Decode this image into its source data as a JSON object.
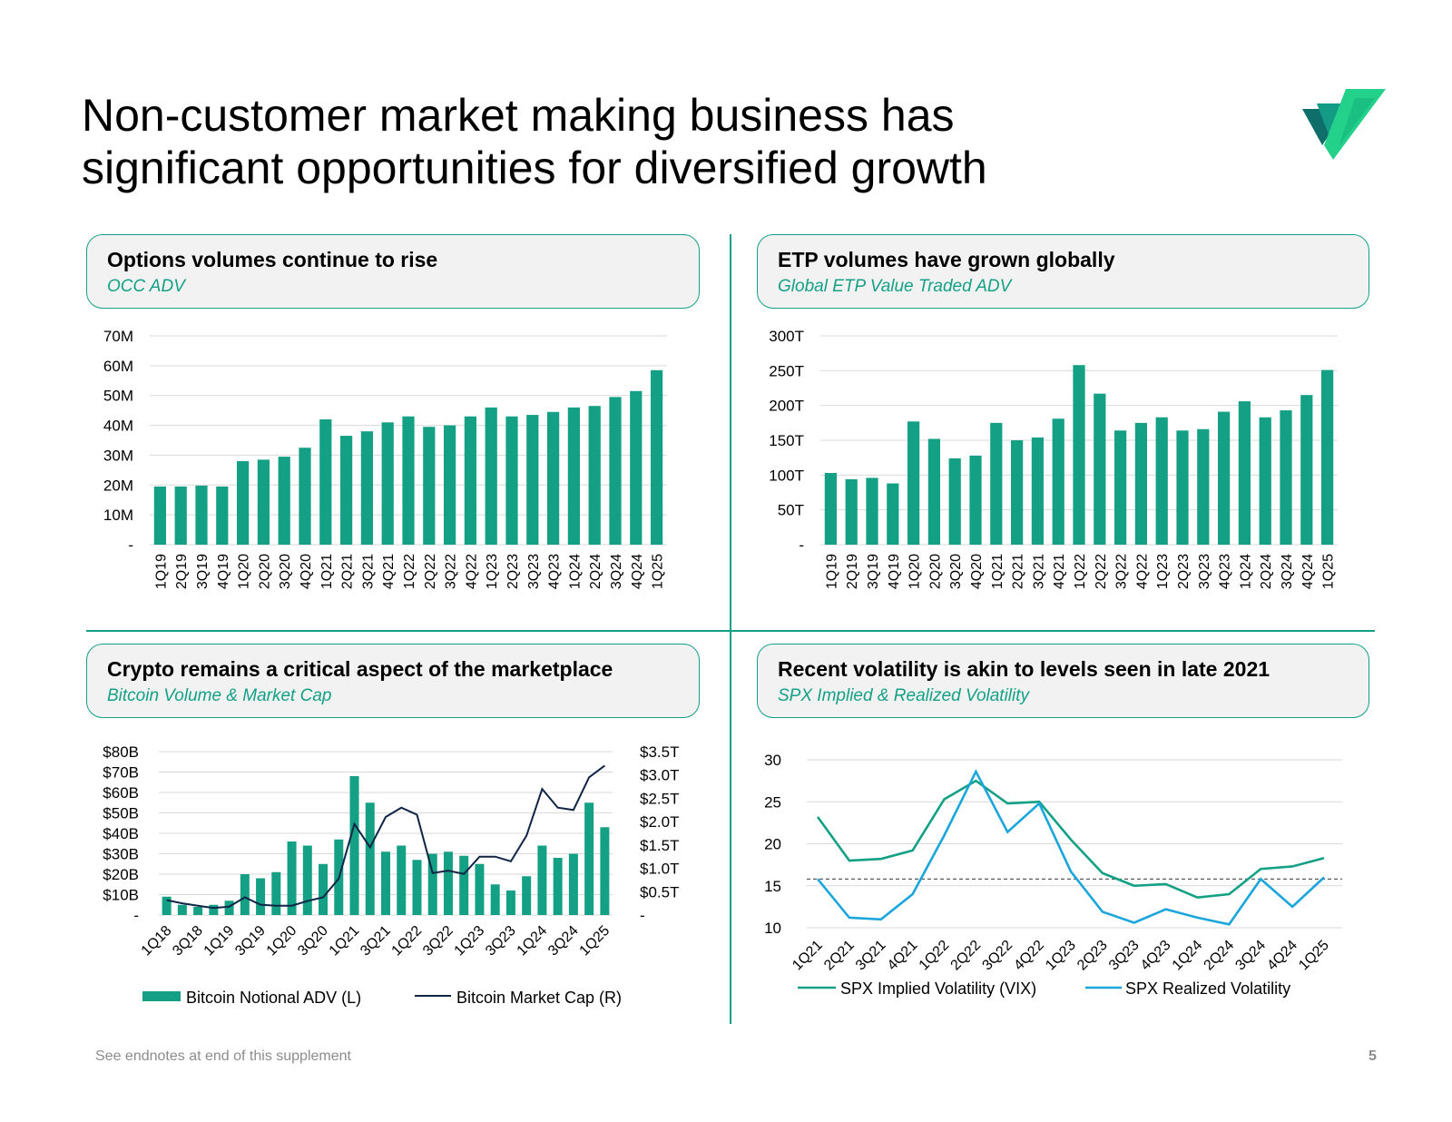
{
  "page": {
    "title_line1": "Non-customer market making business has",
    "title_line2": "significant opportunities for diversified growth",
    "footnote": "See endnotes at end of this supplement",
    "page_number": "5",
    "logo_icon": "check-logo-icon"
  },
  "colors": {
    "accent": "#14a085",
    "realized": "#1aa6dc",
    "mcap": "#0f2545",
    "grid": "#d9d9d9",
    "reference": "#595959"
  },
  "panels": {
    "options": {
      "title": "Options volumes continue to rise",
      "subtitle": "OCC ADV"
    },
    "etp": {
      "title": "ETP volumes have grown globally",
      "subtitle": "Global ETP Value Traded ADV"
    },
    "crypto": {
      "title": "Crypto remains a critical aspect of the marketplace",
      "subtitle": "Bitcoin Volume & Market Cap"
    },
    "volatility": {
      "title": "Recent volatility is akin to levels seen in late 2021",
      "subtitle": "SPX Implied & Realized Volatility"
    }
  },
  "chart_data": [
    {
      "id": "options",
      "type": "bar",
      "title": "Options volumes continue to rise",
      "subtitle": "OCC ADV",
      "categories": [
        "1Q19",
        "2Q19",
        "3Q19",
        "4Q19",
        "1Q20",
        "2Q20",
        "3Q20",
        "4Q20",
        "1Q21",
        "2Q21",
        "3Q21",
        "4Q21",
        "1Q22",
        "2Q22",
        "3Q22",
        "4Q22",
        "1Q23",
        "2Q23",
        "3Q23",
        "4Q23",
        "1Q24",
        "2Q24",
        "3Q24",
        "4Q24",
        "1Q25"
      ],
      "values": [
        19.5,
        19.5,
        19.8,
        19.5,
        28,
        28.5,
        29.5,
        32.5,
        42,
        36.5,
        38,
        41,
        43,
        39.5,
        40,
        43,
        46,
        43,
        43.5,
        44.5,
        46,
        46.5,
        49.5,
        51.5,
        58.5
      ],
      "unit": "M",
      "ylim": [
        0,
        70
      ],
      "yticks": [
        0,
        10,
        20,
        30,
        40,
        50,
        60,
        70
      ],
      "ytick_labels": [
        "-",
        "10M",
        "20M",
        "30M",
        "40M",
        "50M",
        "60M",
        "70M"
      ],
      "grid": true
    },
    {
      "id": "etp",
      "type": "bar",
      "title": "ETP volumes have grown globally",
      "subtitle": "Global ETP Value Traded ADV",
      "categories": [
        "1Q19",
        "2Q19",
        "3Q19",
        "4Q19",
        "1Q20",
        "2Q20",
        "3Q20",
        "4Q20",
        "1Q21",
        "2Q21",
        "3Q21",
        "4Q21",
        "1Q22",
        "2Q22",
        "3Q22",
        "4Q22",
        "1Q23",
        "2Q23",
        "3Q23",
        "4Q23",
        "1Q24",
        "2Q24",
        "3Q24",
        "4Q24",
        "1Q25"
      ],
      "values": [
        103,
        94,
        96,
        88,
        177,
        152,
        124,
        128,
        175,
        150,
        154,
        181,
        258,
        217,
        164,
        175,
        183,
        164,
        166,
        191,
        206,
        183,
        193,
        215,
        251
      ],
      "unit": "T",
      "ylim": [
        0,
        300
      ],
      "yticks": [
        0,
        50,
        100,
        150,
        200,
        250,
        300
      ],
      "ytick_labels": [
        "-",
        "50T",
        "100T",
        "150T",
        "200T",
        "250T",
        "300T"
      ],
      "grid": true
    },
    {
      "id": "crypto",
      "type": "bar",
      "title": "Crypto remains a critical aspect of the marketplace",
      "subtitle": "Bitcoin Volume & Market Cap",
      "categories": [
        "1Q18",
        "2Q18",
        "3Q18",
        "4Q18",
        "1Q19",
        "2Q19",
        "3Q19",
        "4Q19",
        "1Q20",
        "2Q20",
        "3Q20",
        "4Q20",
        "1Q21",
        "2Q21",
        "3Q21",
        "4Q21",
        "1Q22",
        "2Q22",
        "3Q22",
        "4Q22",
        "1Q23",
        "2Q23",
        "3Q23",
        "4Q23",
        "1Q24",
        "2Q24",
        "3Q24",
        "4Q24",
        "1Q25"
      ],
      "category_labels": [
        "1Q18",
        "",
        "3Q18",
        "",
        "1Q19",
        "",
        "3Q19",
        "",
        "1Q20",
        "",
        "3Q20",
        "",
        "1Q21",
        "",
        "3Q21",
        "",
        "1Q22",
        "",
        "3Q22",
        "",
        "1Q23",
        "",
        "3Q23",
        "",
        "1Q24",
        "",
        "3Q24",
        "",
        "1Q25"
      ],
      "series": [
        {
          "name": "Bitcoin Notional ADV (L)",
          "type": "bar",
          "axis": "left",
          "unit": "$B",
          "values": [
            9,
            5,
            4,
            5,
            7,
            20,
            18,
            21,
            36,
            34,
            25,
            37,
            68,
            55,
            31,
            34,
            27,
            30,
            31,
            29,
            25,
            15,
            12,
            19,
            34,
            28,
            30,
            55,
            43
          ]
        },
        {
          "name": "Bitcoin Market Cap (R)",
          "type": "line",
          "axis": "right",
          "unit": "$T",
          "values": [
            0.32,
            0.25,
            0.2,
            0.15,
            0.18,
            0.38,
            0.22,
            0.2,
            0.2,
            0.3,
            0.38,
            0.78,
            1.95,
            1.45,
            2.1,
            2.3,
            2.15,
            0.9,
            0.95,
            0.88,
            1.25,
            1.25,
            1.15,
            1.7,
            2.7,
            2.3,
            2.25,
            2.95,
            3.2
          ]
        }
      ],
      "ylim_left": [
        0,
        80
      ],
      "yticks_left": [
        0,
        10,
        20,
        30,
        40,
        50,
        60,
        70,
        80
      ],
      "ytick_labels_left": [
        "-",
        "$10B",
        "$20B",
        "$30B",
        "$40B",
        "$50B",
        "$60B",
        "$70B",
        "$80B"
      ],
      "ylim_right": [
        0,
        3.5
      ],
      "yticks_right": [
        0,
        0.5,
        1,
        1.5,
        2,
        2.5,
        3,
        3.5
      ],
      "ytick_labels_right": [
        "-",
        "$0.5T",
        "$1.0T",
        "$1.5T",
        "$2.0T",
        "$2.5T",
        "$3.0T",
        "$3.5T"
      ],
      "legend": "bottom",
      "grid": true
    },
    {
      "id": "volatility",
      "type": "line",
      "title": "Recent volatility is akin to levels seen in late 2021",
      "subtitle": "SPX Implied & Realized Volatility",
      "categories": [
        "1Q21",
        "2Q21",
        "3Q21",
        "4Q21",
        "1Q22",
        "2Q22",
        "3Q22",
        "4Q22",
        "1Q23",
        "2Q23",
        "3Q23",
        "4Q23",
        "1Q24",
        "2Q24",
        "3Q24",
        "4Q24",
        "1Q25"
      ],
      "series": [
        {
          "name": "SPX Implied Volatility (VIX)",
          "values": [
            23.2,
            18,
            18.2,
            19.2,
            25.3,
            27.5,
            24.8,
            25,
            20.5,
            16.5,
            15,
            15.2,
            13.6,
            14,
            17,
            17.3,
            18.3
          ]
        },
        {
          "name": "SPX Realized Volatility",
          "values": [
            15.8,
            11.2,
            11,
            14,
            21,
            28.6,
            21.4,
            24.8,
            16.7,
            11.9,
            10.6,
            12.2,
            11.2,
            10.4,
            15.8,
            12.5,
            16
          ]
        }
      ],
      "reference_line": 15.8,
      "ylim": [
        10,
        30
      ],
      "yticks": [
        10,
        15,
        20,
        25,
        30
      ],
      "ytick_labels": [
        "10",
        "15",
        "20",
        "25",
        "30"
      ],
      "legend": "bottom",
      "grid": true
    }
  ]
}
